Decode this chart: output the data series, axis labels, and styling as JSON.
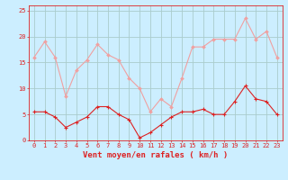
{
  "x": [
    0,
    1,
    2,
    3,
    4,
    5,
    6,
    7,
    8,
    9,
    10,
    11,
    12,
    13,
    14,
    15,
    16,
    17,
    18,
    19,
    20,
    21,
    22,
    23
  ],
  "wind_avg": [
    5.5,
    5.5,
    4.5,
    2.5,
    3.5,
    4.5,
    6.5,
    6.5,
    5.0,
    4.0,
    0.5,
    1.5,
    3.0,
    4.5,
    5.5,
    5.5,
    6.0,
    5.0,
    5.0,
    7.5,
    10.5,
    8.0,
    7.5,
    5.0
  ],
  "wind_gust": [
    16.0,
    19.0,
    16.0,
    8.5,
    13.5,
    15.5,
    18.5,
    16.5,
    15.5,
    12.0,
    10.0,
    5.5,
    8.0,
    6.5,
    12.0,
    18.0,
    18.0,
    19.5,
    19.5,
    19.5,
    23.5,
    19.5,
    21.0,
    16.0
  ],
  "avg_color": "#dd2222",
  "gust_color": "#f0a0a0",
  "bg_color": "#cceeff",
  "grid_color": "#aacccc",
  "axis_color": "#dd2222",
  "xlabel": "Vent moyen/en rafales ( km/h )",
  "ylim": [
    0,
    26
  ],
  "yticks": [
    0,
    5,
    10,
    15,
    20,
    25
  ],
  "xticks": [
    0,
    1,
    2,
    3,
    4,
    5,
    6,
    7,
    8,
    9,
    10,
    11,
    12,
    13,
    14,
    15,
    16,
    17,
    18,
    19,
    20,
    21,
    22,
    23
  ]
}
